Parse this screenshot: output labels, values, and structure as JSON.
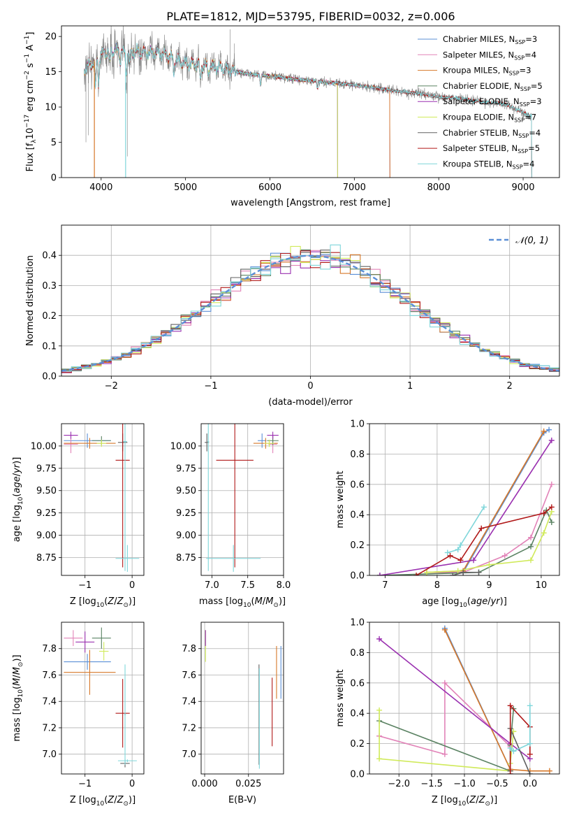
{
  "title": "PLATE=1812, MJD=53795, FIBERID=0032, z=0.006",
  "colors": {
    "Chabrier MILES": "#5b8fd6",
    "Salpeter MILES": "#e283b8",
    "Kroupa MILES": "#d6782a",
    "Chabrier ELODIE": "#5a8262",
    "Salpeter ELODIE": "#9a30b0",
    "Kroupa ELODIE": "#d0ea5a",
    "Chabrier STELIB": "#606060",
    "Salpeter STELIB": "#b01818",
    "Kroupa STELIB": "#7fd6da",
    "gaussian": "#5b8fd6"
  },
  "chart_data": [
    {
      "id": "spectrum",
      "type": "line",
      "title": "PLATE=1812, MJD=53795, FIBERID=0032, z=0.006",
      "xlabel": "wavelength [Angstrom, rest frame]",
      "ylabel": "Flux [f",
      "xlim": [
        3530,
        9430
      ],
      "ylim": [
        0,
        21.5
      ],
      "xticks": [
        4000,
        5000,
        6000,
        7000,
        8000,
        9000
      ],
      "yticks": [
        0,
        5,
        10,
        15,
        20
      ],
      "legend": "top-right",
      "continuum": {
        "wavelength": [
          3800,
          3900,
          4000,
          4100,
          4200,
          4300,
          4400,
          4500,
          4600,
          4700,
          4800,
          4900,
          5000,
          5200,
          5400,
          5600,
          5800,
          6000,
          6200,
          6400,
          6600,
          6800,
          7000,
          7200,
          7400,
          7600,
          7800,
          8000,
          8200,
          8400,
          8600,
          8800,
          9000,
          9100
        ],
        "flux": [
          15.5,
          16.3,
          17.4,
          18.0,
          17.9,
          17.6,
          17.8,
          17.7,
          17.6,
          17.6,
          17.3,
          16.6,
          16.2,
          15.9,
          15.6,
          15.0,
          14.6,
          14.4,
          14.1,
          13.8,
          13.6,
          13.4,
          13.1,
          12.8,
          12.4,
          12.1,
          11.9,
          11.4,
          11.3,
          10.9,
          10.6,
          10.4,
          9.2,
          8.7
        ]
      },
      "series": [
        {
          "name": "Chabrier MILES, N",
          "nssp": "3",
          "end": 7420
        },
        {
          "name": "Salpeter MILES, N",
          "nssp": "4",
          "end": 7420
        },
        {
          "name": "Kroupa MILES, N",
          "nssp": "3",
          "end": 7420
        },
        {
          "name": "Chabrier ELODIE, N",
          "nssp": "5",
          "end": 6800
        },
        {
          "name": "Salpeter ELODIE, N",
          "nssp": "3",
          "end": 6800
        },
        {
          "name": "Kroupa ELODIE, N",
          "nssp": "7",
          "end": 6800
        },
        {
          "name": "Chabrier STELIB, N",
          "nssp": "4",
          "end": 9100
        },
        {
          "name": "Salpeter STELIB, N",
          "nssp": "5",
          "end": 9100
        },
        {
          "name": "Kroupa STELIB, N",
          "nssp": "4",
          "end": 9100
        }
      ]
    },
    {
      "id": "residuals",
      "type": "line",
      "xlabel": "(data-model)/error",
      "ylabel": "Normed distribution",
      "xlim": [
        -2.5,
        2.5
      ],
      "ylim": [
        0,
        0.5
      ],
      "xticks": [
        -2,
        -1,
        0,
        1,
        2
      ],
      "yticks": [
        0.0,
        0.1,
        0.2,
        0.3,
        0.4
      ],
      "legend": "top-right",
      "legend_label": "𝒩(0, 1)",
      "bin_width": 0.1,
      "bin_start": -2.5,
      "grid": true
    },
    {
      "id": "z-age",
      "type": "scatter",
      "xlabel": "Z [log",
      "ylabel": "age  [log",
      "xlim": [
        -1.5,
        0.25
      ],
      "ylim": [
        8.55,
        10.25
      ],
      "xticks": [
        -1,
        0
      ],
      "yticks": [
        8.75,
        9.0,
        9.25,
        9.5,
        9.75,
        10.0
      ],
      "points": [
        {
          "s": "Chabrier MILES",
          "x": -0.95,
          "xe": 0.5,
          "y": 10.06,
          "ye": 0.08
        },
        {
          "s": "Salpeter MILES",
          "x": -1.3,
          "xe": 0.15,
          "y": 10.02,
          "ye": 0.1
        },
        {
          "s": "Kroupa MILES",
          "x": -0.9,
          "xe": 0.55,
          "y": 10.03,
          "ye": 0.06
        },
        {
          "s": "Chabrier ELODIE",
          "x": -0.65,
          "xe": 0.2,
          "y": 10.06,
          "ye": 0.05
        },
        {
          "s": "Salpeter ELODIE",
          "x": -1.3,
          "xe": 0.15,
          "y": 10.12,
          "ye": 0.04
        },
        {
          "s": "Kroupa ELODIE",
          "x": -0.65,
          "xe": 0.1,
          "y": 10.03,
          "ye": 0.04
        },
        {
          "s": "Chabrier STELIB",
          "x": -0.2,
          "xe": 0.1,
          "y": 10.04,
          "ye": 0.1
        },
        {
          "s": "Salpeter STELIB",
          "x": -0.2,
          "xe": 0.15,
          "y": 9.84,
          "ye": 1.2
        },
        {
          "s": "Kroupa STELIB",
          "x": -0.1,
          "xe": 0.25,
          "y": 8.74,
          "ye": 0.15
        },
        {
          "s": "Kroupa STELIB",
          "x": -0.15,
          "xe": 0.04,
          "y": 10.05,
          "ye": 1.45
        }
      ]
    },
    {
      "id": "mass-age",
      "type": "scatter",
      "xlabel": "mass [log",
      "ylabel": "",
      "xlim": [
        6.85,
        8.0
      ],
      "ylim": [
        8.55,
        10.25
      ],
      "xticks": [
        7.0,
        7.5,
        8.0
      ],
      "yticks": [
        8.75,
        9.0,
        9.25,
        9.5,
        9.75,
        10.0
      ],
      "points": [
        {
          "s": "Chabrier MILES",
          "x": 7.7,
          "xe": 0.06,
          "y": 10.06,
          "ye": 0.08
        },
        {
          "s": "Salpeter MILES",
          "x": 7.85,
          "xe": 0.06,
          "y": 10.02,
          "ye": 0.1
        },
        {
          "s": "Kroupa MILES",
          "x": 7.75,
          "xe": 0.17,
          "y": 10.03,
          "ye": 0.06
        },
        {
          "s": "Chabrier ELODIE",
          "x": 7.85,
          "xe": 0.08,
          "y": 10.06,
          "ye": 0.05
        },
        {
          "s": "Salpeter ELODIE",
          "x": 7.85,
          "xe": 0.08,
          "y": 10.12,
          "ye": 0.04
        },
        {
          "s": "Kroupa ELODIE",
          "x": 7.8,
          "xe": 0.07,
          "y": 10.03,
          "ye": 0.04
        },
        {
          "s": "Chabrier STELIB",
          "x": 6.93,
          "xe": 0.03,
          "y": 10.04,
          "ye": 0.1
        },
        {
          "s": "Salpeter STELIB",
          "x": 7.32,
          "xe": 0.26,
          "y": 9.84,
          "ye": 1.2
        },
        {
          "s": "Kroupa STELIB",
          "x": 7.3,
          "xe": 0.38,
          "y": 8.74,
          "ye": 0.15
        },
        {
          "s": "Kroupa STELIB",
          "x": 6.95,
          "xe": 0.01,
          "y": 10.05,
          "ye": 1.45
        }
      ]
    },
    {
      "id": "age-weight",
      "type": "line",
      "xlabel": "age  [log",
      "ylabel": "mass weight",
      "xlim": [
        6.7,
        10.35
      ],
      "ylim": [
        0,
        1.0
      ],
      "xticks": [
        7,
        8,
        9,
        10
      ],
      "yticks": [
        0.0,
        0.2,
        0.4,
        0.6,
        0.8,
        1.0
      ],
      "grid": true,
      "series": [
        {
          "name": "Chabrier MILES",
          "x": [
            8.5,
            10.05,
            10.15
          ],
          "y": [
            0.02,
            0.94,
            0.96
          ]
        },
        {
          "name": "Salpeter MILES",
          "x": [
            7.8,
            8.5,
            9.3,
            9.8,
            10.2
          ],
          "y": [
            0.02,
            0.02,
            0.13,
            0.25,
            0.6
          ]
        },
        {
          "name": "Kroupa MILES",
          "x": [
            7.8,
            8.5,
            10.05
          ],
          "y": [
            0.02,
            0.03,
            0.95
          ]
        },
        {
          "name": "Chabrier ELODIE",
          "x": [
            6.9,
            8.8,
            9.8,
            10.1,
            10.2
          ],
          "y": [
            0.0,
            0.02,
            0.19,
            0.43,
            0.35
          ]
        },
        {
          "name": "Salpeter ELODIE",
          "x": [
            6.9,
            8.7,
            10.2
          ],
          "y": [
            0.0,
            0.1,
            0.89
          ]
        },
        {
          "name": "Kroupa ELODIE",
          "x": [
            7.8,
            8.4,
            9.0,
            9.8,
            10.05,
            10.2
          ],
          "y": [
            0.02,
            0.03,
            0.07,
            0.1,
            0.28,
            0.42
          ]
        },
        {
          "name": "Chabrier STELIB",
          "x": [
            8.3,
            8.5,
            8.8
          ],
          "y": [
            0.0,
            0.02,
            0.02
          ]
        },
        {
          "name": "Salpeter STELIB",
          "x": [
            7.6,
            8.25,
            8.45,
            8.85,
            10.05,
            10.2
          ],
          "y": [
            0.0,
            0.13,
            0.1,
            0.31,
            0.41,
            0.45
          ]
        },
        {
          "name": "Kroupa STELIB",
          "x": [
            8.2,
            8.4,
            8.45,
            8.9
          ],
          "y": [
            0.15,
            0.17,
            0.2,
            0.45
          ]
        }
      ]
    },
    {
      "id": "z-mass",
      "type": "scatter",
      "xlabel": "Z [log",
      "ylabel": "mass [log",
      "xlim": [
        -1.5,
        0.25
      ],
      "ylim": [
        6.85,
        8.0
      ],
      "xticks": [
        -1,
        0
      ],
      "yticks": [
        7.0,
        7.2,
        7.4,
        7.6,
        7.8
      ],
      "points": [
        {
          "s": "Chabrier MILES",
          "x": -0.95,
          "xe": 0.5,
          "y": 7.7,
          "ye": 0.06
        },
        {
          "s": "Salpeter MILES",
          "x": -1.25,
          "xe": 0.2,
          "y": 7.88,
          "ye": 0.06
        },
        {
          "s": "Kroupa MILES",
          "x": -0.9,
          "xe": 0.55,
          "y": 7.62,
          "ye": 0.17
        },
        {
          "s": "Chabrier ELODIE",
          "x": -0.65,
          "xe": 0.2,
          "y": 7.88,
          "ye": 0.08
        },
        {
          "s": "Salpeter ELODIE",
          "x": -1.0,
          "xe": 0.2,
          "y": 7.85,
          "ye": 0.08
        },
        {
          "s": "Kroupa ELODIE",
          "x": -0.6,
          "xe": 0.1,
          "y": 7.78,
          "ye": 0.07
        },
        {
          "s": "Chabrier STELIB",
          "x": -0.15,
          "xe": 0.1,
          "y": 6.93,
          "ye": 0.03
        },
        {
          "s": "Salpeter STELIB",
          "x": -0.2,
          "xe": 0.15,
          "y": 7.31,
          "ye": 0.26
        },
        {
          "s": "Kroupa STELIB",
          "x": -0.1,
          "xe": 0.2,
          "y": 6.95,
          "ye": 0.01
        },
        {
          "s": "Kroupa STELIB",
          "x": -0.15,
          "xe": 0.02,
          "y": 7.3,
          "ye": 0.38
        }
      ]
    },
    {
      "id": "ebv-mass",
      "type": "scatter",
      "xlabel": "E(B-V)",
      "ylabel": "",
      "xlim": [
        -0.002,
        0.045
      ],
      "ylim": [
        6.85,
        8.0
      ],
      "xticks": [
        0.0,
        0.025
      ],
      "xticklabels": [
        "0.000",
        "0.025"
      ],
      "yticks": [
        7.0,
        7.2,
        7.4,
        7.6,
        7.8
      ],
      "points": [
        {
          "s": "Kroupa ELODIE",
          "x": 0.0005,
          "y": 7.82,
          "ye": 0.12
        },
        {
          "s": "Salpeter ELODIE",
          "x": 0.0005,
          "y": 7.88,
          "ye": 0.06
        },
        {
          "s": "Chabrier STELIB",
          "x": 0.031,
          "y": 7.3,
          "ye": 0.38
        },
        {
          "s": "Kroupa STELIB",
          "x": 0.0312,
          "y": 7.27,
          "ye": 0.38
        },
        {
          "s": "Salpeter STELIB",
          "x": 0.0385,
          "y": 7.32,
          "ye": 0.26
        },
        {
          "s": "Kroupa MILES",
          "x": 0.041,
          "y": 7.62,
          "ye": 0.2
        },
        {
          "s": "Chabrier MILES",
          "x": 0.0435,
          "y": 7.62,
          "ye": 0.2
        }
      ]
    },
    {
      "id": "z-weight",
      "type": "line",
      "xlabel": "Z [log",
      "ylabel": "mass weight",
      "xlim": [
        -2.45,
        0.45
      ],
      "ylim": [
        0,
        1.0
      ],
      "xticks": [
        -2.0,
        -1.5,
        -1.0,
        -0.5,
        0.0
      ],
      "xticklabels": [
        "−2.0",
        "−1.5",
        "−1.0",
        "−0.5",
        "0.0"
      ],
      "yticks": [
        0.0,
        0.2,
        0.4,
        0.6,
        0.8,
        1.0
      ],
      "grid": true,
      "series": [
        {
          "name": "Chabrier MILES",
          "x": [
            -1.3,
            -0.3,
            -0.3
          ],
          "y": [
            0.96,
            0.03,
            0.02
          ]
        },
        {
          "name": "Salpeter MILES",
          "x": [
            -2.3,
            -1.3,
            -1.3,
            -0.3,
            -0.3
          ],
          "y": [
            0.25,
            0.13,
            0.6,
            0.18,
            0.03
          ]
        },
        {
          "name": "Kroupa MILES",
          "x": [
            -1.3,
            -0.3,
            0.0,
            0.3
          ],
          "y": [
            0.95,
            0.03,
            0.02,
            0.02
          ]
        },
        {
          "name": "Chabrier ELODIE",
          "x": [
            -2.3,
            -0.3,
            -0.3,
            -0.25
          ],
          "y": [
            0.35,
            0.02,
            0.19,
            0.43
          ]
        },
        {
          "name": "Salpeter ELODIE",
          "x": [
            -2.3,
            -0.3,
            0.0
          ],
          "y": [
            0.89,
            0.2,
            0.1
          ]
        },
        {
          "name": "Kroupa ELODIE",
          "x": [
            -2.3,
            -2.3,
            -0.3,
            -0.3,
            -0.25
          ],
          "y": [
            0.42,
            0.1,
            0.02,
            0.07,
            0.28
          ]
        },
        {
          "name": "Chabrier STELIB",
          "x": [
            -0.3,
            -0.3,
            0.0
          ],
          "y": [
            0.02,
            0.3,
            0.0
          ]
        },
        {
          "name": "Salpeter STELIB",
          "x": [
            -0.3,
            -0.3,
            0.0,
            0.0
          ],
          "y": [
            0.0,
            0.45,
            0.31,
            0.13
          ]
        },
        {
          "name": "Kroupa STELIB",
          "x": [
            -0.3,
            -0.25,
            0.0,
            0.0
          ],
          "y": [
            0.17,
            0.15,
            0.2,
            0.45
          ]
        }
      ]
    }
  ]
}
